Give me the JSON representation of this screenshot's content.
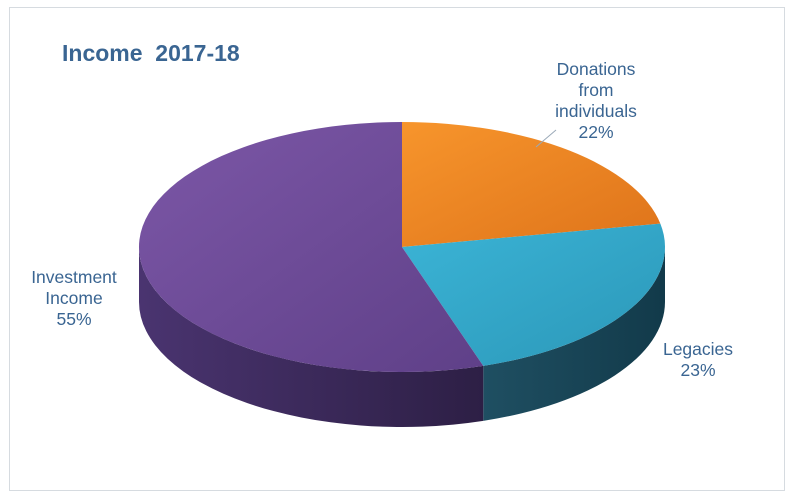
{
  "chart_data": {
    "type": "pie",
    "style": "3d",
    "title": "Income  2017-18",
    "slices": [
      {
        "label": "Donations from individuals",
        "label_lines": [
          "Donations",
          "from",
          "individuals"
        ],
        "value": 22,
        "value_text": "22%",
        "color": "#ef8420"
      },
      {
        "label": "Legacies",
        "label_lines": [
          "Legacies"
        ],
        "value": 23,
        "value_text": "23%",
        "color": "#33a7c8"
      },
      {
        "label": "Investment Income",
        "label_lines": [
          "Investment",
          "Income"
        ],
        "value": 55,
        "value_text": "55%",
        "color": "#6e4b97"
      }
    ],
    "legend": "none",
    "data_labels": "outside"
  }
}
